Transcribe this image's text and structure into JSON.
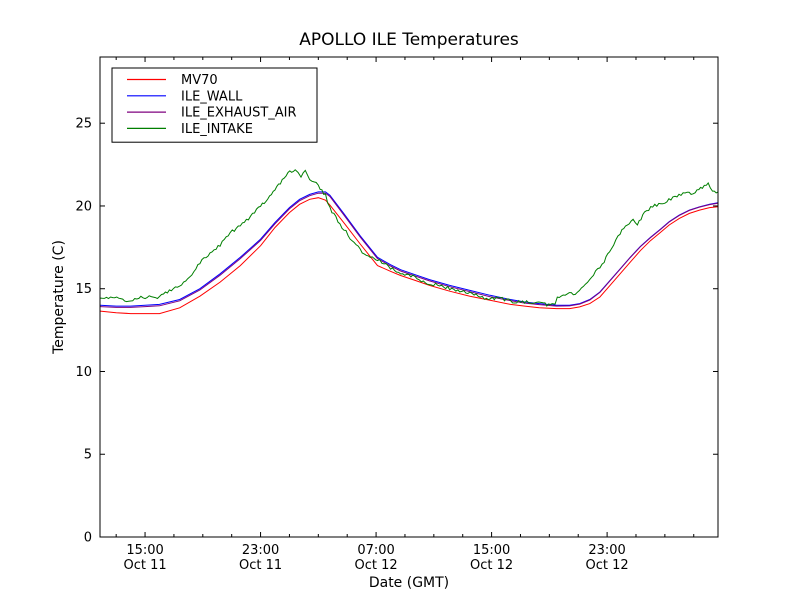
{
  "window": {
    "background": "#ffffff"
  },
  "chart_data": {
    "type": "line",
    "title": "APOLLO ILE Temperatures",
    "xlabel": "Date (GMT)",
    "ylabel": "Temperature (C)",
    "grid": false,
    "legend_position": "upper left",
    "x_unit_note": "hours relative to first tick (15:00 Oct 11)",
    "x_range": [
      -3.12,
      39.68
    ],
    "y_range": [
      0,
      29
    ],
    "y_ticks": [
      0,
      5,
      10,
      15,
      20,
      25
    ],
    "x_ticks": [
      {
        "h": 0,
        "time": "15:00",
        "date": "Oct 11"
      },
      {
        "h": 8,
        "time": "23:00",
        "date": "Oct 11"
      },
      {
        "h": 16,
        "time": "07:00",
        "date": "Oct 12"
      },
      {
        "h": 24,
        "time": "15:00",
        "date": "Oct 12"
      },
      {
        "h": 32,
        "time": "23:00",
        "date": "Oct 12"
      }
    ],
    "x_minor_tick_step_h": 2,
    "axis_color": "#000000",
    "series": [
      {
        "name": "MV70",
        "color": "#ff0000",
        "noise": 0,
        "points": [
          [
            -3.1,
            13.65
          ],
          [
            -2,
            13.55
          ],
          [
            -1,
            13.5
          ],
          [
            0,
            13.5
          ],
          [
            1,
            13.5
          ],
          [
            2.4,
            13.85
          ],
          [
            3.8,
            14.55
          ],
          [
            5.2,
            15.4
          ],
          [
            6.6,
            16.4
          ],
          [
            8,
            17.6
          ],
          [
            9,
            18.7
          ],
          [
            10,
            19.6
          ],
          [
            10.7,
            20.1
          ],
          [
            11.4,
            20.4
          ],
          [
            12,
            20.5
          ],
          [
            12.5,
            20.35
          ],
          [
            12.8,
            20.05
          ],
          [
            13.8,
            18.95
          ],
          [
            14.9,
            17.7
          ],
          [
            16.1,
            16.4
          ],
          [
            17,
            16.05
          ],
          [
            17.7,
            15.8
          ],
          [
            18.7,
            15.5
          ],
          [
            19.7,
            15.2
          ],
          [
            21.1,
            14.85
          ],
          [
            22.5,
            14.55
          ],
          [
            23.9,
            14.3
          ],
          [
            25.3,
            14.05
          ],
          [
            26.3,
            13.95
          ],
          [
            27.3,
            13.85
          ],
          [
            28.5,
            13.8
          ],
          [
            29.4,
            13.8
          ],
          [
            30.1,
            13.9
          ],
          [
            30.8,
            14.1
          ],
          [
            31.5,
            14.5
          ],
          [
            32.2,
            15.2
          ],
          [
            32.9,
            15.9
          ],
          [
            33.6,
            16.6
          ],
          [
            34.3,
            17.3
          ],
          [
            35,
            17.9
          ],
          [
            35.7,
            18.4
          ],
          [
            36.3,
            18.85
          ],
          [
            37,
            19.25
          ],
          [
            37.7,
            19.55
          ],
          [
            38.4,
            19.75
          ],
          [
            39.1,
            19.9
          ],
          [
            39.68,
            19.95
          ]
        ]
      },
      {
        "name": "ILE_WALL",
        "color": "#0000ff",
        "noise": 0,
        "points": [
          [
            -3.1,
            14.0
          ],
          [
            -2,
            13.95
          ],
          [
            -1,
            13.95
          ],
          [
            0,
            14.0
          ],
          [
            1,
            14.05
          ],
          [
            2.4,
            14.35
          ],
          [
            3.8,
            15.0
          ],
          [
            5.2,
            15.9
          ],
          [
            6.6,
            16.9
          ],
          [
            8,
            18.0
          ],
          [
            9,
            19.0
          ],
          [
            10,
            19.9
          ],
          [
            10.7,
            20.4
          ],
          [
            11.4,
            20.7
          ],
          [
            12,
            20.85
          ],
          [
            12.5,
            20.85
          ],
          [
            12.8,
            20.65
          ],
          [
            13.8,
            19.5
          ],
          [
            14.9,
            18.2
          ],
          [
            16.1,
            16.9
          ],
          [
            17,
            16.45
          ],
          [
            17.7,
            16.15
          ],
          [
            18.7,
            15.85
          ],
          [
            19.7,
            15.55
          ],
          [
            21.1,
            15.2
          ],
          [
            22.5,
            14.9
          ],
          [
            23.9,
            14.6
          ],
          [
            25.3,
            14.35
          ],
          [
            26.3,
            14.2
          ],
          [
            27.3,
            14.1
          ],
          [
            28.5,
            14.0
          ],
          [
            29.4,
            14.0
          ],
          [
            30.1,
            14.1
          ],
          [
            30.8,
            14.35
          ],
          [
            31.5,
            14.8
          ],
          [
            32.2,
            15.5
          ],
          [
            32.9,
            16.2
          ],
          [
            33.6,
            16.9
          ],
          [
            34.3,
            17.55
          ],
          [
            35,
            18.1
          ],
          [
            35.7,
            18.6
          ],
          [
            36.3,
            19.05
          ],
          [
            37,
            19.45
          ],
          [
            37.7,
            19.75
          ],
          [
            38.4,
            19.95
          ],
          [
            39.1,
            20.1
          ],
          [
            39.68,
            20.2
          ]
        ]
      },
      {
        "name": "ILE_EXHAUST_AIR",
        "color": "#7f007f",
        "noise": 0,
        "points": [
          [
            -3.1,
            13.92
          ],
          [
            -2,
            13.87
          ],
          [
            -1,
            13.87
          ],
          [
            0,
            13.92
          ],
          [
            1,
            13.97
          ],
          [
            2.4,
            14.27
          ],
          [
            3.8,
            14.92
          ],
          [
            5.2,
            15.82
          ],
          [
            6.6,
            16.82
          ],
          [
            8,
            17.92
          ],
          [
            9,
            18.92
          ],
          [
            10,
            19.82
          ],
          [
            10.7,
            20.32
          ],
          [
            11.4,
            20.62
          ],
          [
            12,
            20.77
          ],
          [
            12.5,
            20.77
          ],
          [
            12.8,
            20.57
          ],
          [
            13.8,
            19.42
          ],
          [
            14.9,
            18.12
          ],
          [
            16.1,
            16.82
          ],
          [
            17,
            16.37
          ],
          [
            17.7,
            16.07
          ],
          [
            18.7,
            15.77
          ],
          [
            19.7,
            15.47
          ],
          [
            21.1,
            15.12
          ],
          [
            22.5,
            14.82
          ],
          [
            23.9,
            14.52
          ],
          [
            25.3,
            14.28
          ],
          [
            26.3,
            14.13
          ],
          [
            27.3,
            14.04
          ],
          [
            28.5,
            13.95
          ],
          [
            29.4,
            13.96
          ],
          [
            30.1,
            14.07
          ],
          [
            30.8,
            14.32
          ],
          [
            31.5,
            14.78
          ],
          [
            32.2,
            15.48
          ],
          [
            32.9,
            16.18
          ],
          [
            33.6,
            16.88
          ],
          [
            34.3,
            17.53
          ],
          [
            35,
            18.08
          ],
          [
            35.7,
            18.58
          ],
          [
            36.3,
            19.03
          ],
          [
            37,
            19.43
          ],
          [
            37.7,
            19.73
          ],
          [
            38.4,
            19.93
          ],
          [
            39.1,
            20.08
          ],
          [
            39.68,
            20.17
          ]
        ]
      },
      {
        "name": "ILE_INTAKE",
        "color": "#007f00",
        "noise": 0.1,
        "points": [
          [
            -3.1,
            14.45
          ],
          [
            -2.1,
            14.4
          ],
          [
            -1,
            14.35
          ],
          [
            0,
            14.45
          ],
          [
            1,
            14.55
          ],
          [
            2.1,
            15.0
          ],
          [
            3.1,
            15.8
          ],
          [
            3.8,
            16.5
          ],
          [
            4.5,
            17.1
          ],
          [
            5.2,
            17.7
          ],
          [
            5.9,
            18.3
          ],
          [
            6.6,
            18.85
          ],
          [
            7.3,
            19.4
          ],
          [
            8,
            20.0
          ],
          [
            8.5,
            20.4
          ],
          [
            9,
            21.0
          ],
          [
            9.5,
            21.6
          ],
          [
            9.9,
            21.9
          ],
          [
            10.4,
            22.2
          ],
          [
            10.6,
            22.0
          ],
          [
            10.8,
            21.8
          ],
          [
            11.1,
            22.1
          ],
          [
            11.4,
            21.7
          ],
          [
            12,
            21.2
          ],
          [
            12.5,
            20.6
          ],
          [
            12.8,
            19.9
          ],
          [
            13.5,
            18.95
          ],
          [
            14.2,
            18.05
          ],
          [
            14.9,
            17.35
          ],
          [
            15.6,
            16.95
          ],
          [
            16.1,
            16.7
          ],
          [
            17,
            16.25
          ],
          [
            17.7,
            16.0
          ],
          [
            18.7,
            15.65
          ],
          [
            19.7,
            15.35
          ],
          [
            21.1,
            15.0
          ],
          [
            22.5,
            14.7
          ],
          [
            23.5,
            14.5
          ],
          [
            24.6,
            14.35
          ],
          [
            25.6,
            14.25
          ],
          [
            26.7,
            14.15
          ],
          [
            27.7,
            14.1
          ],
          [
            28.2,
            14.05
          ],
          [
            28.4,
            14.05
          ],
          [
            28.55,
            14.5
          ],
          [
            29.1,
            14.6
          ],
          [
            29.8,
            14.8
          ],
          [
            30.5,
            15.3
          ],
          [
            31.2,
            16.0
          ],
          [
            31.8,
            16.7
          ],
          [
            32.3,
            17.5
          ],
          [
            32.9,
            18.3
          ],
          [
            33.4,
            18.9
          ],
          [
            33.8,
            19.25
          ],
          [
            34.1,
            18.9
          ],
          [
            34.6,
            19.6
          ],
          [
            35.3,
            20.0
          ],
          [
            36,
            20.3
          ],
          [
            36.7,
            20.5
          ],
          [
            37.4,
            20.7
          ],
          [
            38.1,
            20.9
          ],
          [
            38.6,
            21.1
          ],
          [
            39.0,
            21.35
          ],
          [
            39.3,
            20.9
          ],
          [
            39.68,
            20.85
          ]
        ]
      }
    ]
  }
}
